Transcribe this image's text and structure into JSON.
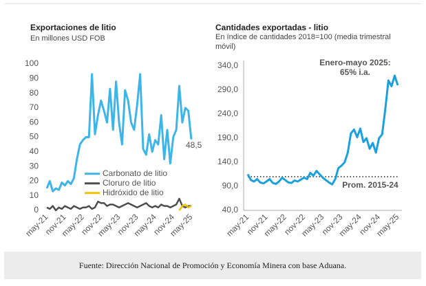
{
  "chart_data": [
    {
      "type": "line",
      "title": "Exportaciones de litio",
      "subtitle": "En millones USD FOB",
      "categories": [
        "may-21",
        null,
        null,
        null,
        null,
        null,
        "nov-21",
        null,
        null,
        null,
        null,
        null,
        "may-22",
        null,
        null,
        null,
        null,
        null,
        "nov-22",
        null,
        null,
        null,
        null,
        null,
        "may-23",
        null,
        null,
        null,
        null,
        null,
        "nov-23",
        null,
        null,
        null,
        null,
        null,
        "may-24",
        null,
        null,
        null,
        null,
        null,
        "nov-24",
        null,
        null,
        null,
        null,
        null,
        "may-25"
      ],
      "series": [
        {
          "name": "Carbonato de litio",
          "color": "#3db5e8",
          "values": [
            15,
            20,
            13,
            15,
            14,
            19,
            17,
            20,
            18,
            22,
            35,
            45,
            48,
            50,
            50,
            93,
            52,
            65,
            75,
            68,
            60,
            83,
            55,
            88,
            60,
            45,
            82,
            75,
            60,
            55,
            72,
            93,
            42,
            38,
            52,
            40,
            48,
            45,
            65,
            35,
            55,
            32,
            50,
            55,
            85,
            60,
            70,
            68,
            48.5
          ],
          "value_labels": [
            null,
            null,
            null,
            null,
            null,
            null,
            null,
            null,
            null,
            null,
            null,
            null,
            null,
            null,
            null,
            null,
            null,
            null,
            null,
            null,
            null,
            null,
            null,
            null,
            null,
            null,
            null,
            null,
            null,
            null,
            null,
            null,
            null,
            null,
            null,
            null,
            null,
            null,
            null,
            null,
            null,
            null,
            null,
            null,
            null,
            null,
            null,
            null,
            "48,5"
          ]
        },
        {
          "name": "Cloruro de litio",
          "color": "#4d4d4d",
          "values": [
            2,
            1,
            3,
            0,
            2,
            1,
            3,
            2,
            1,
            3,
            2,
            1,
            2,
            2,
            3,
            1,
            2,
            6,
            5,
            5,
            3,
            4,
            4,
            3,
            2,
            3,
            4,
            5,
            4,
            3,
            2,
            3,
            4,
            5,
            3,
            2,
            3,
            2,
            4,
            3,
            3,
            2,
            3,
            4,
            8,
            3,
            2,
            3,
            3
          ]
        },
        {
          "name": "Hidróxido de litio",
          "color": "#f2c200",
          "values": [
            null,
            null,
            null,
            null,
            null,
            null,
            null,
            null,
            null,
            null,
            null,
            null,
            null,
            null,
            null,
            null,
            null,
            null,
            null,
            null,
            null,
            null,
            null,
            null,
            null,
            null,
            null,
            null,
            null,
            null,
            null,
            null,
            null,
            null,
            null,
            null,
            null,
            null,
            null,
            null,
            null,
            null,
            null,
            null,
            0,
            3,
            4,
            2,
            3
          ]
        }
      ],
      "ylim": [
        0,
        100
      ],
      "yticks": [
        0,
        10,
        20,
        30,
        40,
        50,
        60,
        70,
        80,
        90,
        100
      ],
      "legend": "center-right"
    },
    {
      "type": "line",
      "title": "Cantidades exportadas - litio",
      "subtitle": "En índice de cantidades 2018=100 (media trimestral móvil)",
      "categories": [
        "may-21",
        null,
        null,
        null,
        null,
        null,
        "nov-21",
        null,
        null,
        null,
        null,
        null,
        "may-22",
        null,
        null,
        null,
        null,
        null,
        "nov-22",
        null,
        null,
        null,
        null,
        null,
        "may-23",
        null,
        null,
        null,
        null,
        null,
        "nov-23",
        null,
        null,
        null,
        null,
        null,
        "may-24",
        null,
        null,
        null,
        null,
        null,
        "nov-24",
        null,
        null,
        null,
        null,
        null,
        "may-25"
      ],
      "series": [
        {
          "name": null,
          "color": "#1aa0dc",
          "values": [
            115,
            103,
            100,
            105,
            98,
            96,
            100,
            105,
            97,
            95,
            100,
            108,
            103,
            98,
            97,
            102,
            100,
            104,
            108,
            105,
            118,
            112,
            122,
            115,
            108,
            103,
            98,
            94,
            105,
            128,
            133,
            140,
            160,
            200,
            208,
            192,
            210,
            182,
            190,
            168,
            180,
            160,
            190,
            198,
            250,
            310,
            298,
            320,
            300
          ]
        }
      ],
      "reference_line": {
        "value": 110,
        "label": "Prom. 2015-24",
        "color": "#555555"
      },
      "annotations": [
        "Enero-mayo 2025:",
        "65% i.a."
      ],
      "ylim": [
        40,
        340
      ],
      "yticks": [
        {
          "value": 40,
          "label": "40,0"
        },
        {
          "value": 90,
          "label": "90,0"
        },
        {
          "value": 140,
          "label": "140,0"
        },
        {
          "value": 190,
          "label": "190,0"
        },
        {
          "value": 240,
          "label": "240,0"
        },
        {
          "value": 290,
          "label": "290,0"
        },
        {
          "value": 340,
          "label": "340,0"
        }
      ]
    }
  ],
  "footer": "Fuente: Dirección Nacional de Promoción y Economía Minera con base Aduana."
}
